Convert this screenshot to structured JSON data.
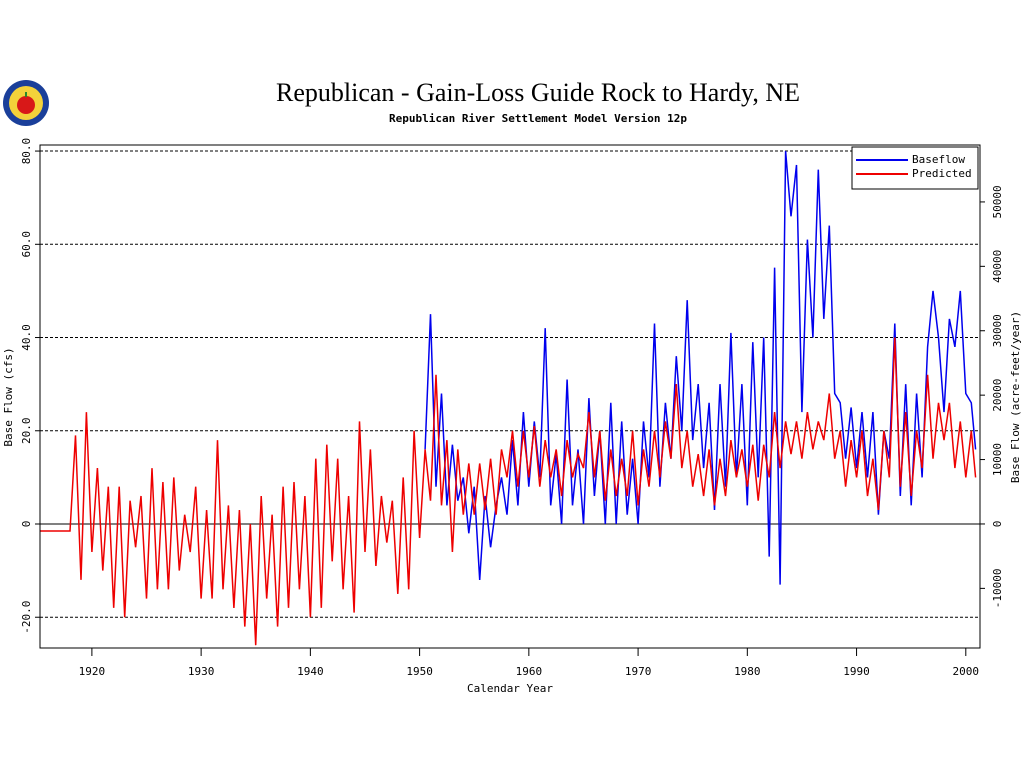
{
  "chart_data": {
    "type": "line",
    "title": "Republican - Gain-Loss Guide Rock to Hardy, NE",
    "subtitle": "Republican River Settlement Model Version 12p",
    "x_label": "Calendar Year",
    "y_label": "Base Flow (cfs)",
    "y2_label": "Base Flow (acre-feet/year)",
    "legend": "top-right",
    "xlim": [
      1915.25,
      2001.3
    ],
    "ylim": [
      -26.6,
      81.3
    ],
    "y2lim": [
      -19258,
      58839
    ],
    "xticks": [
      1920,
      1930,
      1940,
      1950,
      1960,
      1970,
      1980,
      1990,
      2000
    ],
    "yticks": [
      {
        "value": -20,
        "label": "-20.0"
      },
      0,
      {
        "value": 20,
        "label": "20.0"
      },
      {
        "value": 40,
        "label": "40.0"
      },
      {
        "value": 60,
        "label": "60.0"
      },
      {
        "value": 80,
        "label": "80.0"
      }
    ],
    "y2ticks": [
      -10000,
      0,
      10000,
      20000,
      30000,
      40000,
      50000
    ],
    "grid": true,
    "x": [
      1915.3,
      1918,
      1918.5,
      1919,
      1919.5,
      1920,
      1920.5,
      1921,
      1921.5,
      1922,
      1922.5,
      1923,
      1923.5,
      1924,
      1924.5,
      1925,
      1925.5,
      1926,
      1926.5,
      1927,
      1927.5,
      1928,
      1928.5,
      1929,
      1929.5,
      1930,
      1930.5,
      1931,
      1931.5,
      1932,
      1932.5,
      1933,
      1933.5,
      1934,
      1934.5,
      1935,
      1935.5,
      1936,
      1936.5,
      1937,
      1937.5,
      1938,
      1938.5,
      1939,
      1939.5,
      1940,
      1940.5,
      1941,
      1941.5,
      1942,
      1942.5,
      1943,
      1943.5,
      1944,
      1944.5,
      1945,
      1945.5,
      1946,
      1946.5,
      1947,
      1947.5,
      1948,
      1948.5,
      1949,
      1949.5,
      1950,
      1950.5,
      1951,
      1951.5,
      1952,
      1952.5,
      1953,
      1953.5,
      1954,
      1954.5,
      1955,
      1955.5,
      1956,
      1956.5,
      1957,
      1957.5,
      1958,
      1958.5,
      1959,
      1959.5,
      1960,
      1960.5,
      1961,
      1961.5,
      1962,
      1962.5,
      1963,
      1963.5,
      1964,
      1964.5,
      1965,
      1965.5,
      1966,
      1966.5,
      1967,
      1967.5,
      1968,
      1968.5,
      1969,
      1969.5,
      1970,
      1970.5,
      1971,
      1971.5,
      1972,
      1972.5,
      1973,
      1973.5,
      1974,
      1974.5,
      1975,
      1975.5,
      1976,
      1976.5,
      1977,
      1977.5,
      1978,
      1978.5,
      1979,
      1979.5,
      1980,
      1980.5,
      1981,
      1981.5,
      1982,
      1982.5,
      1983,
      1983.5,
      1984,
      1984.5,
      1985,
      1985.5,
      1986,
      1986.5,
      1987,
      1987.5,
      1988,
      1988.5,
      1989,
      1989.5,
      1990,
      1990.5,
      1991,
      1991.5,
      1992,
      1992.5,
      1993,
      1993.5,
      1994,
      1994.5,
      1995,
      1995.5,
      1996,
      1996.5,
      1997,
      1997.5,
      1998,
      1998.5,
      1999,
      1999.5,
      2000,
      2000.5,
      2000.9
    ],
    "series": [
      {
        "name": "Baseflow",
        "color": "#0000ee",
        "values": [
          null,
          null,
          null,
          null,
          null,
          null,
          null,
          null,
          null,
          null,
          null,
          null,
          null,
          null,
          null,
          null,
          null,
          null,
          null,
          null,
          null,
          null,
          null,
          null,
          null,
          null,
          null,
          null,
          null,
          null,
          null,
          null,
          null,
          null,
          null,
          null,
          null,
          null,
          null,
          null,
          null,
          null,
          null,
          null,
          null,
          null,
          null,
          null,
          null,
          null,
          null,
          null,
          null,
          null,
          null,
          null,
          null,
          null,
          null,
          null,
          null,
          null,
          null,
          null,
          null,
          null,
          16,
          45,
          8,
          28,
          4,
          17,
          5,
          10,
          -2,
          8,
          -12,
          6,
          -5,
          4,
          10,
          2,
          18,
          4,
          24,
          8,
          22,
          10,
          42,
          4,
          15,
          0,
          31,
          4,
          16,
          0,
          27,
          6,
          20,
          0,
          26,
          0,
          22,
          2,
          14,
          0,
          22,
          10,
          43,
          8,
          26,
          14,
          36,
          20,
          48,
          18,
          30,
          12,
          26,
          3,
          30,
          8,
          41,
          10,
          30,
          4,
          39,
          10,
          40,
          -7,
          55,
          -13,
          80,
          66,
          77,
          24,
          61,
          40,
          76,
          44,
          64,
          28,
          26,
          14,
          25,
          12,
          24,
          10,
          24,
          2,
          20,
          14,
          43,
          6,
          30,
          4,
          28,
          10,
          38,
          50,
          40,
          24,
          44,
          38,
          50,
          28,
          26,
          16
        ]
      },
      {
        "name": "Predicted",
        "color": "#ee0000",
        "values": [
          -1.5,
          -1.5,
          19,
          -12,
          24,
          -6,
          12,
          -10,
          8,
          -18,
          8,
          -20,
          5,
          -5,
          6,
          -16,
          12,
          -14,
          9,
          -14,
          10,
          -10,
          2,
          -6,
          8,
          -16,
          3,
          -16,
          18,
          -14,
          4,
          -18,
          3,
          -22,
          0,
          -26,
          6,
          -16,
          2,
          -22,
          8,
          -18,
          9,
          -14,
          6,
          -20,
          14,
          -18,
          17,
          -8,
          14,
          -14,
          6,
          -19,
          22,
          -6,
          16,
          -9,
          6,
          -4,
          5,
          -15,
          10,
          -14,
          20,
          -3,
          16,
          5,
          32,
          4,
          18,
          -6,
          16,
          2,
          13,
          2,
          13,
          3,
          14,
          2,
          16,
          10,
          20,
          8,
          20,
          10,
          21,
          8,
          18,
          10,
          16,
          6,
          18,
          10,
          15,
          12,
          24,
          10,
          20,
          5,
          16,
          6,
          14,
          6,
          20,
          4,
          16,
          8,
          20,
          10,
          22,
          14,
          30,
          12,
          20,
          8,
          15,
          6,
          16,
          4,
          14,
          6,
          18,
          10,
          16,
          8,
          17,
          5,
          17,
          10,
          24,
          12,
          22,
          15,
          22,
          14,
          24,
          16,
          22,
          18,
          28,
          14,
          20,
          8,
          18,
          10,
          20,
          6,
          14,
          3,
          20,
          10,
          40,
          8,
          24,
          6,
          20,
          12,
          32,
          14,
          26,
          18,
          26,
          12,
          22,
          10,
          20,
          10
        ]
      }
    ]
  }
}
